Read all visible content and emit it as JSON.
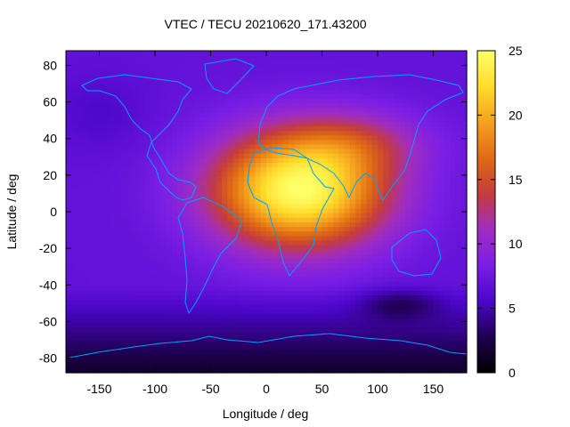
{
  "chart_data": {
    "type": "heatmap",
    "title": "VTEC / TECU 20210620_171.43200",
    "xlabel": "Longitude / deg",
    "ylabel": "Latitude / deg",
    "xlim": [
      -180,
      180
    ],
    "ylim": [
      -88,
      88
    ],
    "x_ticks": [
      -150,
      -100,
      -50,
      0,
      50,
      100,
      150
    ],
    "y_ticks": [
      -80,
      -60,
      -40,
      -20,
      0,
      20,
      40,
      60,
      80
    ],
    "colorbar": {
      "range": [
        0,
        25
      ],
      "ticks": [
        0,
        5,
        10,
        15,
        20,
        25
      ],
      "colors": [
        "#000000",
        "#1e0050",
        "#4b06c8",
        "#7a1ee6",
        "#a02dc0",
        "#c43c3c",
        "#e06a14",
        "#f5a21e",
        "#ffdc2a",
        "#ffff66"
      ]
    },
    "grid_resolution": {
      "lon_step_deg": 5,
      "lat_step_deg": 2.5
    },
    "field_features": {
      "equatorial_maximum": {
        "lon": 30,
        "lat": 12,
        "vtec": 25
      },
      "background_vtec": 7,
      "southern_high_latitude_minimum": {
        "lat": -85,
        "vtec": 1.5
      },
      "secondary_depletion": {
        "lon": 120,
        "lat": -50,
        "vtec": 3
      }
    },
    "coastline_color": "#00a0ff",
    "grid": false
  }
}
